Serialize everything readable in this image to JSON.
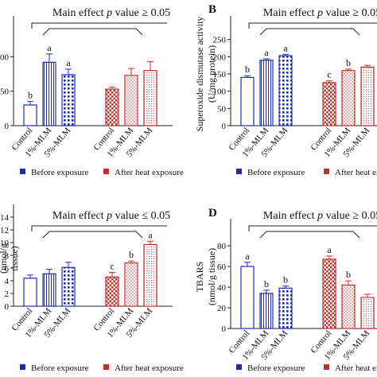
{
  "figure": {
    "panels": [
      {
        "letter": "",
        "ylabel_lines": [],
        "main_effect": {
          "prefix": "Main effect ",
          "p": "p",
          "suffix": " value ≥ 0.05"
        }
      },
      {
        "letter": "B",
        "ylabel_lines": [
          "Superoxide dismutase activity",
          "(U/mg protein)"
        ],
        "main_effect": {
          "prefix": "Main effect ",
          "p": "p",
          "suffix": " value ≥ 0.05"
        }
      },
      {
        "letter": "",
        "ylabel_lines": [
          "(nmol/g",
          "tissue)"
        ],
        "main_effect": {
          "prefix": "Main effect ",
          "p": "p",
          "suffix": " value ≤ 0.05"
        }
      },
      {
        "letter": "D",
        "ylabel_lines": [
          "TBARS",
          "(nmol/g tissue)"
        ],
        "main_effect": {
          "prefix": "Main effect ",
          "p": "p",
          "suffix": " value ≥ 0.05"
        }
      }
    ],
    "legend": {
      "before": "Before exposure",
      "after": "After heat exposure"
    }
  },
  "colors": {
    "blue": "#1f2bb0",
    "red": "#c0302b",
    "axis": "#222222"
  },
  "chart_data": [
    {
      "type": "bar",
      "categories": [
        "Control",
        "1%-MLM",
        "5%-MLM",
        "Control",
        "1%-MLM",
        "5%-MLM"
      ],
      "ylim": [
        0,
        150
      ],
      "yticks": [
        0,
        50,
        100
      ],
      "values": [
        30,
        92,
        74,
        53,
        73,
        80
      ],
      "errors": [
        5,
        12,
        8,
        3,
        10,
        13
      ],
      "letters": [
        "b",
        "a",
        "a",
        "",
        "",
        ""
      ],
      "groups": [
        "before",
        "before",
        "before",
        "after",
        "after",
        "after"
      ]
    },
    {
      "type": "bar",
      "categories": [
        "Control",
        "1%-MLM",
        "5%-MLM",
        "Control",
        "1%-MLM",
        "5%-MLM"
      ],
      "ylim": [
        0,
        300
      ],
      "yticks": [
        0,
        50,
        100,
        150,
        200,
        250
      ],
      "values": [
        140,
        190,
        203,
        125,
        160,
        170
      ],
      "errors": [
        5,
        4,
        4,
        5,
        4,
        5
      ],
      "letters": [
        "b",
        "a",
        "a",
        "c",
        "b",
        ""
      ],
      "groups": [
        "before",
        "before",
        "before",
        "after",
        "after",
        "after"
      ]
    },
    {
      "type": "bar",
      "categories": [
        "Control",
        "1%-MLM",
        "5%-MLM",
        "Control",
        "1%-MLM",
        "5%-MLM"
      ],
      "ylim": [
        0,
        15
      ],
      "yticks": [
        0,
        2,
        4,
        6,
        8,
        10,
        12,
        14
      ],
      "values": [
        4.4,
        5.1,
        6.1,
        4.6,
        6.8,
        9.7
      ],
      "errors": [
        0.5,
        0.7,
        0.8,
        0.7,
        0.3,
        0.5
      ],
      "letters": [
        "",
        "",
        "",
        "c",
        "b",
        "a"
      ],
      "groups": [
        "before",
        "before",
        "before",
        "after",
        "after",
        "after"
      ]
    },
    {
      "type": "bar",
      "categories": [
        "Control",
        "1%-MLM",
        "5%-MLM",
        "Control",
        "1%-MLM",
        "5%-MLM"
      ],
      "ylim": [
        0,
        100
      ],
      "yticks": [
        0,
        20,
        40,
        60,
        80
      ],
      "values": [
        60,
        34,
        39,
        67,
        42,
        30
      ],
      "errors": [
        4,
        3,
        2,
        3,
        4,
        3
      ],
      "letters": [
        "a",
        "b",
        "b",
        "a",
        "b",
        ""
      ],
      "groups": [
        "before",
        "before",
        "before",
        "after",
        "after",
        "after"
      ]
    }
  ]
}
